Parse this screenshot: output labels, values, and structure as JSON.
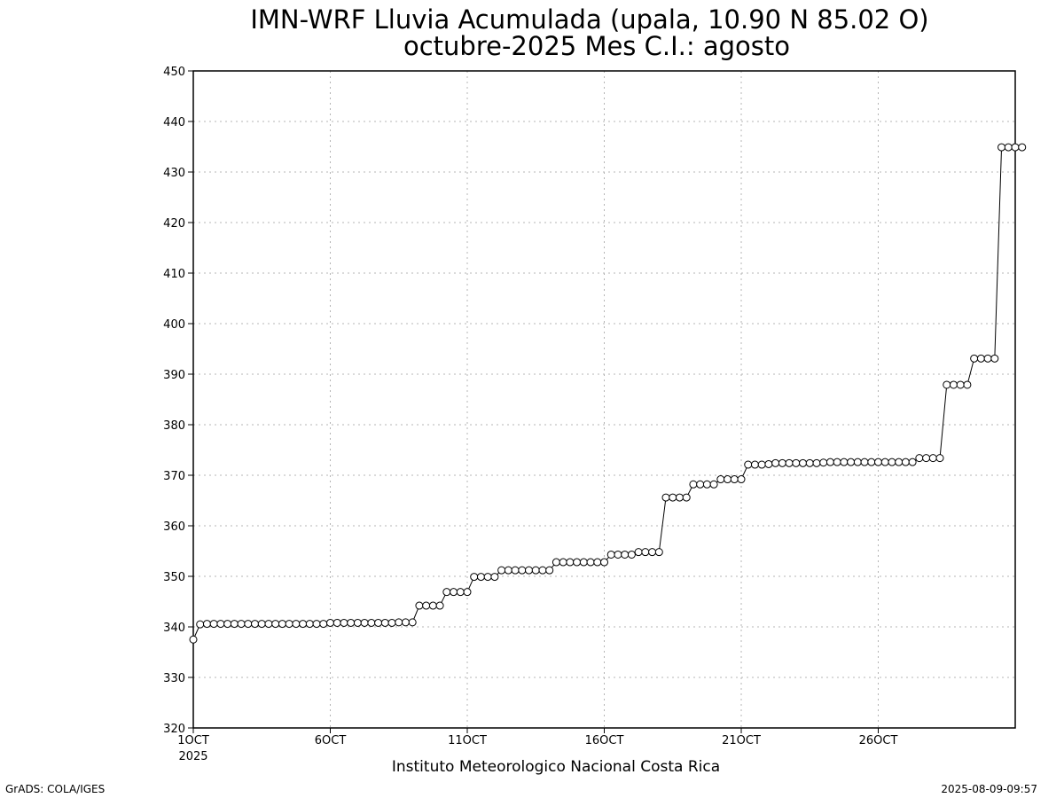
{
  "chart_data": {
    "type": "line",
    "title": "IMN-WRF  Lluvia Acumulada (upala, 10.90  N 85.02  O)",
    "subtitle": "octubre-2025 Mes C.I.: agosto",
    "xlabel": "",
    "ylabel": "",
    "xticks": [
      {
        "day": 1,
        "label": "1OCT",
        "sublabel": "2025"
      },
      {
        "day": 6,
        "label": "6OCT"
      },
      {
        "day": 11,
        "label": "11OCT"
      },
      {
        "day": 16,
        "label": "16OCT"
      },
      {
        "day": 21,
        "label": "21OCT"
      },
      {
        "day": 26,
        "label": "26OCT"
      }
    ],
    "xlim": [
      1,
      31
    ],
    "ylim": [
      320,
      450
    ],
    "yticks": [
      320,
      330,
      340,
      350,
      360,
      370,
      380,
      390,
      400,
      410,
      420,
      430,
      440,
      450
    ],
    "grid": true,
    "step_days": 0.25,
    "series": [
      {
        "values": [
          337.5,
          340.5,
          340.6,
          340.6,
          340.6,
          340.6,
          340.6,
          340.6,
          340.6,
          340.6,
          340.6,
          340.6,
          340.6,
          340.6,
          340.6,
          340.6,
          340.6,
          340.6,
          340.6,
          340.6,
          340.8,
          340.8,
          340.8,
          340.8,
          340.8,
          340.8,
          340.8,
          340.8,
          340.8,
          340.8,
          340.9,
          340.9,
          340.9,
          344.2,
          344.2,
          344.2,
          344.2,
          346.9,
          346.9,
          346.9,
          346.9,
          349.9,
          349.9,
          349.9,
          349.9,
          351.2,
          351.2,
          351.2,
          351.2,
          351.2,
          351.2,
          351.2,
          351.2,
          352.8,
          352.8,
          352.8,
          352.8,
          352.8,
          352.8,
          352.8,
          352.8,
          354.3,
          354.3,
          354.3,
          354.3,
          354.8,
          354.8,
          354.8,
          354.8,
          365.6,
          365.6,
          365.6,
          365.6,
          368.2,
          368.2,
          368.2,
          368.2,
          369.2,
          369.2,
          369.2,
          369.2,
          372.1,
          372.1,
          372.1,
          372.2,
          372.4,
          372.4,
          372.4,
          372.4,
          372.4,
          372.4,
          372.4,
          372.5,
          372.6,
          372.6,
          372.6,
          372.6,
          372.6,
          372.6,
          372.6,
          372.6,
          372.6,
          372.6,
          372.6,
          372.6,
          372.6,
          373.4,
          373.4,
          373.4,
          373.4,
          387.9,
          387.9,
          387.9,
          387.9,
          393.1,
          393.1,
          393.1,
          393.1,
          434.9,
          434.9,
          434.9,
          434.9
        ]
      }
    ]
  },
  "footer": {
    "institution": "Instituto Meteorologico Nacional Costa Rica",
    "credit_left": "GrADS: COLA/IGES",
    "credit_right": "2025-08-09-09:57"
  },
  "colors": {
    "line": "#000000",
    "marker_fill": "#ffffff",
    "grid": "#b4b4b4",
    "axes": "#000000"
  }
}
